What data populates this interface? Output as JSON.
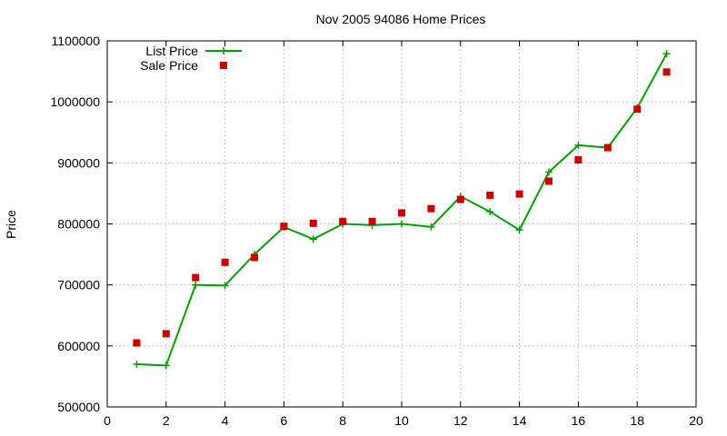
{
  "chart_data": {
    "type": "line",
    "title": "Nov 2005 94086 Home Prices",
    "xlabel": "",
    "ylabel": "Price",
    "xlim": [
      0,
      20
    ],
    "ylim": [
      500000,
      1100000
    ],
    "x_ticks": [
      0,
      2,
      4,
      6,
      8,
      10,
      12,
      14,
      16,
      18,
      20
    ],
    "y_ticks": [
      500000,
      600000,
      700000,
      800000,
      900000,
      1000000,
      1100000
    ],
    "grid": true,
    "legend_position": "top-left",
    "x": [
      1,
      2,
      3,
      4,
      5,
      6,
      7,
      8,
      9,
      10,
      11,
      12,
      13,
      14,
      15,
      16,
      17,
      18,
      19
    ],
    "series": [
      {
        "name": "List Price",
        "style": "line-with-plus-markers",
        "color": "#00a000",
        "values": [
          570000,
          568000,
          700000,
          699000,
          750000,
          795000,
          775000,
          800000,
          798000,
          800000,
          795000,
          845000,
          820000,
          790000,
          885000,
          929000,
          925000,
          990000,
          1079000
        ]
      },
      {
        "name": "Sale Price",
        "style": "square-markers",
        "color": "#cc0000",
        "values": [
          605000,
          620000,
          712000,
          737000,
          745000,
          796000,
          801000,
          804000,
          804000,
          818000,
          825000,
          840000,
          847000,
          849000,
          870000,
          905000,
          925000,
          988000,
          1049000
        ]
      }
    ]
  }
}
